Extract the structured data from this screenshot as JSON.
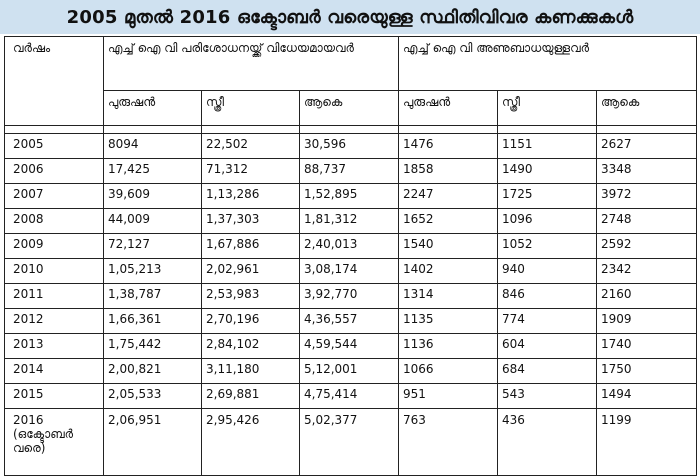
{
  "title": "2005 മുതൽ 2016 ഒക്ടോബർ വരെയുള്ള സ്ഥിതിവിവര കണക്കുകൾ",
  "headers": {
    "year": "വർഷം",
    "group_tested": "എച്ച് ഐ വി പരിശോധനയ്ക്ക് വിധേയമായവർ",
    "group_positive": "എച്ച് ഐ വി അണുബാധയുള്ളവർ",
    "male": "പുരുഷൻ",
    "female": "സ്ത്രീ",
    "total": "ആകെ"
  },
  "rows": [
    {
      "year": "2005",
      "t_male": "8094",
      "t_female": "22,502",
      "t_total": "30,596",
      "p_male": "1476",
      "p_female": "1151",
      "p_total": "2627"
    },
    {
      "year": "2006",
      "t_male": "17,425",
      "t_female": "71,312",
      "t_total": "88,737",
      "p_male": "1858",
      "p_female": "1490",
      "p_total": "3348"
    },
    {
      "year": "2007",
      "t_male": "39,609",
      "t_female": "1,13,286",
      "t_total": "1,52,895",
      "p_male": "2247",
      "p_female": "1725",
      "p_total": "3972"
    },
    {
      "year": "2008",
      "t_male": "44,009",
      "t_female": "1,37,303",
      "t_total": "1,81,312",
      "p_male": "1652",
      "p_female": "1096",
      "p_total": "2748"
    },
    {
      "year": "2009",
      "t_male": "72,127",
      "t_female": "1,67,886",
      "t_total": "2,40,013",
      "p_male": "1540",
      "p_female": "1052",
      "p_total": "2592"
    },
    {
      "year": "2010",
      "t_male": "1,05,213",
      "t_female": "2,02,961",
      "t_total": "3,08,174",
      "p_male": "1402",
      "p_female": "940",
      "p_total": "2342"
    },
    {
      "year": "2011",
      "t_male": "1,38,787",
      "t_female": "2,53,983",
      "t_total": "3,92,770",
      "p_male": "1314",
      "p_female": "846",
      "p_total": "2160"
    },
    {
      "year": "2012",
      "t_male": "1,66,361",
      "t_female": "2,70,196",
      "t_total": "4,36,557",
      "p_male": "1135",
      "p_female": "774",
      "p_total": "1909"
    },
    {
      "year": "2013",
      "t_male": "1,75,442",
      "t_female": "2,84,102",
      "t_total": "4,59,544",
      "p_male": "1136",
      "p_female": "604",
      "p_total": "1740"
    },
    {
      "year": "2014",
      "t_male": "2,00,821",
      "t_female": "3,11,180",
      "t_total": "5,12,001",
      "p_male": "1066",
      "p_female": "684",
      "p_total": "1750"
    },
    {
      "year": "2015",
      "t_male": "2,05,533",
      "t_female": "2,69,881",
      "t_total": "4,75,414",
      "p_male": "951",
      "p_female": "543",
      "p_total": "1494"
    },
    {
      "year": "2016 (ഒക്ടോബർ വരെ)",
      "t_male": "2,06,951",
      "t_female": "2,95,426",
      "t_total": "5,02,377",
      "p_male": "763",
      "p_female": "436",
      "p_total": "1199"
    }
  ]
}
